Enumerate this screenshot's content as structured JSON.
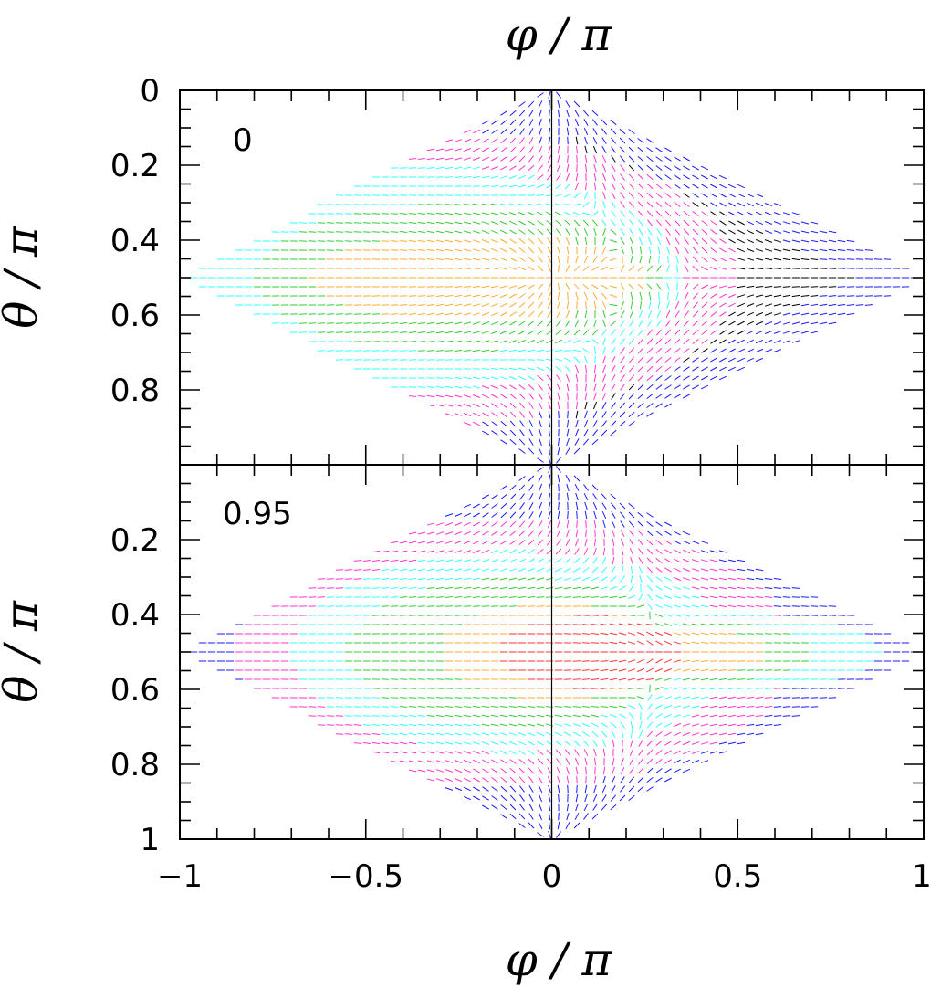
{
  "chart_data": [
    {
      "type": "heatmap",
      "panel_label": "0",
      "xlabel": "φ / π",
      "ylabel": "θ / π",
      "xlim": [
        -1,
        1
      ],
      "ylim": [
        1,
        0
      ],
      "x_ticks": [
        "−1",
        "−0.5",
        "0",
        "0.5",
        "1"
      ],
      "y_ticks": [
        "0",
        "0.2",
        "0.4",
        "0.6",
        "0.8"
      ],
      "field_levels_colors": [
        "#000000",
        "#1a1aff",
        "#ff33cc",
        "#33ffff",
        "#33cc33",
        "#ffaa33",
        "#ff3333"
      ],
      "domain_shape": "diamond",
      "nodes": [
        {
          "phi": 0.0,
          "theta": 0.5,
          "kind": "source"
        },
        {
          "phi": 0.35,
          "theta": 0.5,
          "kind": "saddle"
        },
        {
          "phi": 0.0,
          "theta": 0.0,
          "kind": "pole"
        },
        {
          "phi": 0.0,
          "theta": 1.0,
          "kind": "pole"
        }
      ],
      "regions": [
        {
          "phi_center": -0.2,
          "theta_center": 0.5,
          "phi_halfwidth": 0.45,
          "theta_halfwidth": 0.12,
          "color": "#ffaa33"
        },
        {
          "phi_center": -0.25,
          "theta_center": 0.5,
          "phi_halfwidth": 0.55,
          "theta_halfwidth": 0.2,
          "color": "#33cc33"
        },
        {
          "phi_center": -0.35,
          "theta_center": 0.5,
          "phi_halfwidth": 0.7,
          "theta_halfwidth": 0.3,
          "color": "#33ffff"
        },
        {
          "phi_center": -0.4,
          "theta_center": 0.5,
          "phi_halfwidth": 0.9,
          "theta_halfwidth": 0.4,
          "color": "#ff33cc"
        }
      ]
    },
    {
      "type": "heatmap",
      "panel_label": "0.95",
      "xlabel": "φ / π",
      "ylabel": "θ / π",
      "xlim": [
        -1,
        1
      ],
      "ylim": [
        1,
        0
      ],
      "x_ticks": [
        "−1",
        "−0.5",
        "0",
        "0.5",
        "1"
      ],
      "y_ticks": [
        "0.2",
        "0.4",
        "0.6",
        "0.8",
        "1"
      ],
      "field_levels_colors": [
        "#000000",
        "#1a1aff",
        "#ff33cc",
        "#33ffff",
        "#33cc33",
        "#ffaa33",
        "#ff3333"
      ],
      "domain_shape": "diamond",
      "nodes": [
        {
          "phi": 0.25,
          "theta": 0.5,
          "kind": "source"
        },
        {
          "phi": 0.3,
          "theta": 0.5,
          "kind": "saddle"
        },
        {
          "phi": 0.0,
          "theta": 0.0,
          "kind": "pole"
        },
        {
          "phi": 0.0,
          "theta": 1.0,
          "kind": "pole"
        }
      ],
      "regions": [
        {
          "phi_center": 0.1,
          "theta_center": 0.5,
          "phi_halfwidth": 0.25,
          "theta_halfwidth": 0.1,
          "color": "#ff3333"
        },
        {
          "phi_center": 0.0,
          "theta_center": 0.5,
          "phi_halfwidth": 0.3,
          "theta_halfwidth": 0.13,
          "color": "#ffaa33"
        },
        {
          "phi_center": 0.4,
          "theta_center": 0.5,
          "phi_halfwidth": 0.18,
          "theta_halfwidth": 0.06,
          "color": "#ffaa33"
        },
        {
          "phi_center": -0.1,
          "theta_center": 0.5,
          "phi_halfwidth": 0.45,
          "theta_halfwidth": 0.2,
          "color": "#33cc33"
        },
        {
          "phi_center": 0.45,
          "theta_center": 0.5,
          "phi_halfwidth": 0.25,
          "theta_halfwidth": 0.08,
          "color": "#33cc33"
        },
        {
          "phi_center": -0.1,
          "theta_center": 0.5,
          "phi_halfwidth": 0.6,
          "theta_halfwidth": 0.27,
          "color": "#33ffff"
        },
        {
          "phi_center": 0.5,
          "theta_center": 0.5,
          "phi_halfwidth": 0.38,
          "theta_halfwidth": 0.1,
          "color": "#33ffff"
        },
        {
          "phi_center": -0.1,
          "theta_center": 0.5,
          "phi_halfwidth": 0.75,
          "theta_halfwidth": 0.36,
          "color": "#ff33cc"
        },
        {
          "phi_center": 0.1,
          "theta_center": 0.5,
          "phi_halfwidth": 0.85,
          "theta_halfwidth": 0.4,
          "color": "#1a1aff"
        }
      ]
    }
  ],
  "top_axis_label": "φ / π",
  "bottom_axis_label": "φ / π"
}
